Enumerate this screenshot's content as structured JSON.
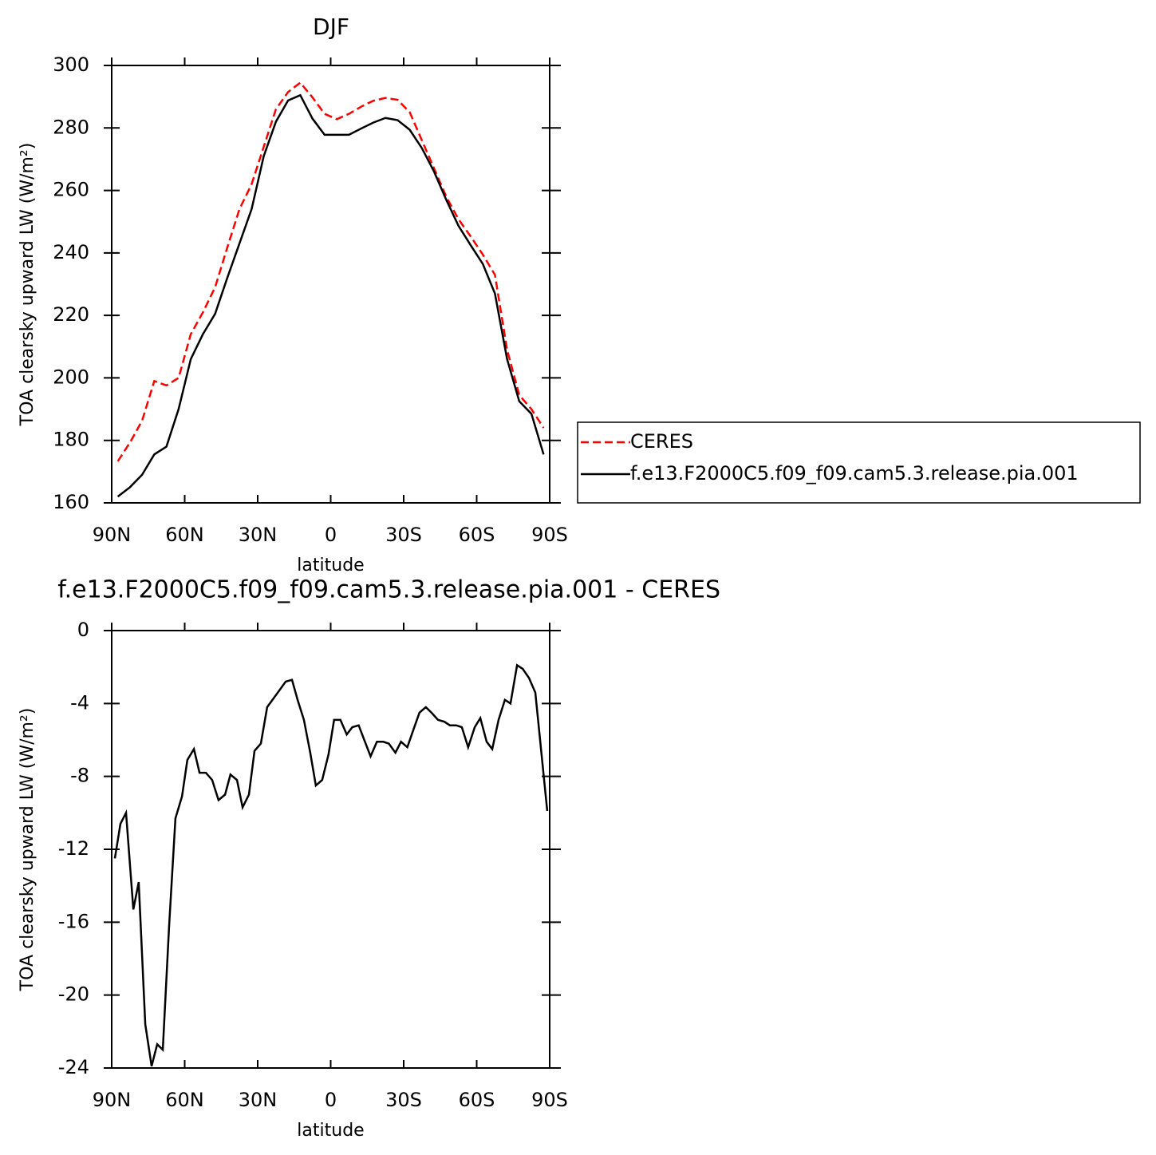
{
  "chart_data": [
    {
      "type": "line",
      "title": "DJF",
      "xlabel": "latitude",
      "ylabel": "TOA clearsky upward LW (W/m²)",
      "x": [
        87.5,
        82.5,
        77.5,
        72.5,
        67.5,
        62.5,
        57.5,
        52.5,
        47.5,
        42.5,
        37.5,
        32.5,
        27.5,
        22.5,
        17.5,
        12.5,
        7.5,
        2.5,
        -2.5,
        -7.5,
        -12.5,
        -17.5,
        -22.5,
        -27.5,
        -32.5,
        -37.5,
        -42.5,
        -47.5,
        -52.5,
        -57.5,
        -62.5,
        -67.5,
        -72.5,
        -77.5,
        -82.5,
        -87.5
      ],
      "series": [
        {
          "name": "CERES",
          "color": "#ff0000",
          "dash": "dashed",
          "values": [
            173.3,
            179.3,
            186.3,
            199,
            197.6,
            200,
            214,
            221,
            229,
            241.7,
            254,
            262,
            274,
            286,
            291.5,
            294.5,
            289.8,
            284.5,
            282.8,
            284.5,
            286.8,
            288.7,
            289.6,
            289,
            285,
            276,
            267,
            258,
            250.8,
            245.3,
            239.5,
            233,
            209,
            194.5,
            190,
            184
          ]
        },
        {
          "name": "f.e13.F2000C5.f09_f09.cam5.3.release.pia.001",
          "color": "#000000",
          "dash": "solid",
          "values": [
            162,
            165,
            169,
            175.5,
            178,
            190,
            206,
            214,
            220.5,
            232,
            243,
            254,
            271,
            282,
            288.8,
            290.5,
            283,
            277.8,
            277.8,
            277.8,
            279.8,
            281.7,
            283.2,
            282.5,
            279.4,
            273.5,
            266,
            257,
            248.7,
            242.5,
            236.5,
            227,
            206,
            192.5,
            188.5,
            175.5
          ]
        }
      ],
      "xlim": [
        90,
        -90
      ],
      "xticks": [
        {
          "value": 90,
          "label": "90N"
        },
        {
          "value": 60,
          "label": "60N"
        },
        {
          "value": 30,
          "label": "30N"
        },
        0,
        {
          "value": -30,
          "label": "30S"
        },
        {
          "value": -60,
          "label": "60S"
        },
        {
          "value": -90,
          "label": "90S"
        }
      ],
      "ylim": [
        160,
        300
      ],
      "yticks": [
        160,
        180,
        200,
        220,
        240,
        260,
        280,
        300
      ],
      "legend": "right"
    },
    {
      "type": "line",
      "title": "f.e13.F2000C5.f09_f09.cam5.3.release.pia.001 - CERES",
      "xlabel": "latitude",
      "ylabel": "TOA clearsky upward LW (W/m²)",
      "x": [
        88.7,
        86.4,
        84.1,
        81.1,
        78.9,
        76.2,
        73.6,
        71.3,
        69,
        66.4,
        63.8,
        61.1,
        58.9,
        56.2,
        53.9,
        51.3,
        48.7,
        46.1,
        43.4,
        41.2,
        38.5,
        36.2,
        33.6,
        31.3,
        28.7,
        26.1,
        21.2,
        18.5,
        15.9,
        13.6,
        11,
        8.4,
        6.1,
        3.5,
        0.9,
        -1.4,
        -4,
        -6.6,
        -8.9,
        -11.5,
        -13.8,
        -16.4,
        -19,
        -21.6,
        -23.9,
        -26.6,
        -28.9,
        -31.5,
        -34.1,
        -36.5,
        -39.1,
        -41.4,
        -44.1,
        -46.7,
        -49,
        -51.6,
        -53.9,
        -56.5,
        -59.2,
        -61.5,
        -64.1,
        -66.4,
        -69,
        -71.6,
        -73.9,
        -76.6,
        -78.9,
        -81.5,
        -84.1,
        -89
      ],
      "series": [
        {
          "color": "#000000",
          "dash": "solid",
          "values": [
            -12.5,
            -10.6,
            -10.0,
            -15.3,
            -13.8,
            -21.6,
            -23.9,
            -22.7,
            -23.0,
            -16.2,
            -10.3,
            -9.1,
            -7.1,
            -6.5,
            -7.8,
            -7.8,
            -8.2,
            -9.3,
            -9.0,
            -7.9,
            -8.2,
            -9.7,
            -9.0,
            -6.6,
            -6.2,
            -4.2,
            -3.3,
            -2.8,
            -2.7,
            -3.8,
            -4.9,
            -6.7,
            -8.5,
            -8.2,
            -6.8,
            -4.9,
            -4.9,
            -5.7,
            -5.3,
            -5.2,
            -6.0,
            -6.9,
            -6.1,
            -6.1,
            -6.2,
            -6.7,
            -6.1,
            -6.4,
            -5.4,
            -4.5,
            -4.2,
            -4.5,
            -4.9,
            -5.0,
            -5.2,
            -5.2,
            -5.3,
            -6.4,
            -5.3,
            -4.8,
            -6.1,
            -6.5,
            -4.9,
            -3.8,
            -4.0,
            -1.9,
            -2.1,
            -2.6,
            -3.4,
            -9.9
          ]
        }
      ],
      "xlim": [
        90,
        -90
      ],
      "xticks": [
        {
          "value": 90,
          "label": "90N"
        },
        {
          "value": 60,
          "label": "60N"
        },
        {
          "value": 30,
          "label": "30N"
        },
        0,
        {
          "value": -30,
          "label": "30S"
        },
        {
          "value": -60,
          "label": "60S"
        },
        {
          "value": -90,
          "label": "90S"
        }
      ],
      "ylim": [
        -24,
        0
      ],
      "yticks": [
        -24,
        -20,
        -16,
        -12,
        -8,
        -4,
        0
      ]
    }
  ]
}
